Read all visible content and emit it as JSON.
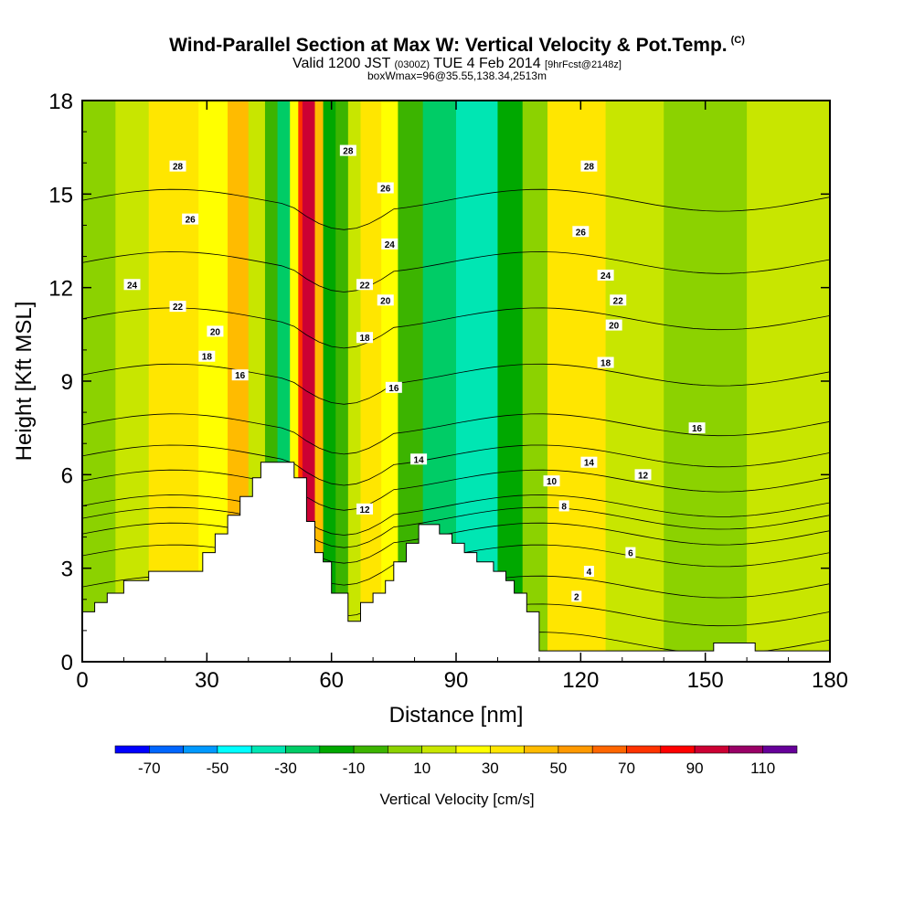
{
  "title": "Wind-Parallel Section at Max W: Vertical Velocity & Pot.Temp.",
  "title_mark": "(C)",
  "subtitle_main": "Valid 1200 JST",
  "subtitle_z": "(0300Z)",
  "subtitle_date": "TUE 4 Feb 2014",
  "subtitle_fcst": "[9hrFcst@2148z]",
  "subline": "boxWmax=96@35.55,138.34,2513m",
  "chart_data": {
    "type": "heatmap",
    "xlabel": "Distance [nm]",
    "ylabel": "Height [Kft MSL]",
    "xlim": [
      0,
      180
    ],
    "ylim": [
      0,
      18
    ],
    "xticks": [
      "0",
      "30",
      "60",
      "90",
      "120",
      "150",
      "180"
    ],
    "yticks": [
      "0",
      "3",
      "6",
      "9",
      "12",
      "15",
      "18"
    ],
    "colorbar": {
      "label": "Vertical Velocity [cm/s]",
      "tick_labels": [
        "-70",
        "-50",
        "-30",
        "-10",
        "10",
        "30",
        "50",
        "70",
        "90",
        "110"
      ],
      "levels": [
        -80,
        -70,
        -60,
        -50,
        -40,
        -30,
        -20,
        -10,
        0,
        10,
        20,
        30,
        40,
        50,
        60,
        70,
        80,
        90,
        100,
        110,
        120
      ],
      "colors": [
        "#0000ff",
        "#0066ff",
        "#0099ff",
        "#00ffff",
        "#00e6b3",
        "#00cc66",
        "#00a800",
        "#3cb400",
        "#8cd200",
        "#c8e600",
        "#ffff00",
        "#ffe600",
        "#ffbb00",
        "#ff9900",
        "#ff6600",
        "#ff3300",
        "#ff0000",
        "#cc0033",
        "#990066",
        "#660099"
      ]
    },
    "terrain": [
      [
        0,
        1.6
      ],
      [
        3,
        1.6
      ],
      [
        3,
        1.9
      ],
      [
        6,
        1.9
      ],
      [
        6,
        2.2
      ],
      [
        10,
        2.2
      ],
      [
        10,
        2.6
      ],
      [
        16,
        2.6
      ],
      [
        16,
        2.9
      ],
      [
        29,
        2.9
      ],
      [
        29,
        3.5
      ],
      [
        32,
        3.5
      ],
      [
        32,
        4.1
      ],
      [
        35,
        4.1
      ],
      [
        35,
        4.7
      ],
      [
        38,
        4.7
      ],
      [
        38,
        5.3
      ],
      [
        41,
        5.3
      ],
      [
        41,
        5.9
      ],
      [
        43,
        5.9
      ],
      [
        43,
        6.4
      ],
      [
        51,
        6.4
      ],
      [
        51,
        5.9
      ],
      [
        54,
        5.9
      ],
      [
        54,
        4.5
      ],
      [
        56,
        4.5
      ],
      [
        56,
        3.5
      ],
      [
        58,
        3.5
      ],
      [
        58,
        3.2
      ],
      [
        60,
        3.2
      ],
      [
        60,
        2.2
      ],
      [
        64,
        2.2
      ],
      [
        64,
        1.3
      ],
      [
        67,
        1.3
      ],
      [
        67,
        1.9
      ],
      [
        70,
        1.9
      ],
      [
        70,
        2.2
      ],
      [
        73,
        2.2
      ],
      [
        73,
        2.6
      ],
      [
        75,
        2.6
      ],
      [
        75,
        3.2
      ],
      [
        78,
        3.2
      ],
      [
        78,
        3.8
      ],
      [
        81,
        3.8
      ],
      [
        81,
        4.4
      ],
      [
        86,
        4.4
      ],
      [
        86,
        4.1
      ],
      [
        89,
        4.1
      ],
      [
        89,
        3.8
      ],
      [
        92,
        3.8
      ],
      [
        92,
        3.5
      ],
      [
        95,
        3.5
      ],
      [
        95,
        3.2
      ],
      [
        99,
        3.2
      ],
      [
        99,
        2.9
      ],
      [
        102,
        2.9
      ],
      [
        102,
        2.6
      ],
      [
        104,
        2.6
      ],
      [
        104,
        2.2
      ],
      [
        107,
        2.2
      ],
      [
        107,
        1.6
      ],
      [
        110,
        1.6
      ],
      [
        110,
        1.0
      ],
      [
        110,
        0.35
      ],
      [
        152,
        0.35
      ],
      [
        152,
        0.6
      ],
      [
        162,
        0.6
      ],
      [
        162,
        0.35
      ],
      [
        180,
        0.35
      ],
      [
        180,
        0
      ]
    ],
    "vertical_velocity_bands": [
      {
        "x0": 0,
        "x1": 8,
        "v": 0
      },
      {
        "x0": 8,
        "x1": 16,
        "v": 10
      },
      {
        "x0": 16,
        "x1": 28,
        "v": 30
      },
      {
        "x0": 28,
        "x1": 35,
        "v": 20
      },
      {
        "x0": 35,
        "x1": 40,
        "v": 40
      },
      {
        "x0": 40,
        "x1": 44,
        "v": 10
      },
      {
        "x0": 44,
        "x1": 47,
        "v": -10
      },
      {
        "x0": 47,
        "x1": 50,
        "v": -30
      },
      {
        "x0": 50,
        "x1": 52,
        "v": 20
      },
      {
        "x0": 52,
        "x1": 53,
        "v": 70
      },
      {
        "x0": 53,
        "x1": 56,
        "v": 96
      },
      {
        "x0": 56,
        "x1": 58,
        "v": 40
      },
      {
        "x0": 58,
        "x1": 61,
        "v": -20
      },
      {
        "x0": 61,
        "x1": 64,
        "v": -10
      },
      {
        "x0": 64,
        "x1": 67,
        "v": 10
      },
      {
        "x0": 67,
        "x1": 72,
        "v": 30
      },
      {
        "x0": 72,
        "x1": 76,
        "v": 20
      },
      {
        "x0": 76,
        "x1": 82,
        "v": -5
      },
      {
        "x0": 82,
        "x1": 90,
        "v": -30
      },
      {
        "x0": 90,
        "x1": 100,
        "v": -40
      },
      {
        "x0": 100,
        "x1": 106,
        "v": -20
      },
      {
        "x0": 106,
        "x1": 112,
        "v": 0
      },
      {
        "x0": 112,
        "x1": 126,
        "v": 30
      },
      {
        "x0": 126,
        "x1": 140,
        "v": 10
      },
      {
        "x0": 140,
        "x1": 160,
        "v": 0
      },
      {
        "x0": 160,
        "x1": 180,
        "v": 10
      }
    ],
    "potential_temperature_contours": [
      {
        "label": "2",
        "h": 0.6,
        "lx": 119,
        "ly": 2.1
      },
      {
        "label": "4",
        "h": 1.5,
        "lx": 122,
        "ly": 2.9
      },
      {
        "label": "6",
        "h": 2.4,
        "lx": 132,
        "ly": 3.5
      },
      {
        "label": "8",
        "h": 3.4,
        "lx": 116,
        "ly": 5.0
      },
      {
        "label": "10",
        "h": 4.1,
        "lx": 113,
        "ly": 5.8
      },
      {
        "label": "12",
        "h": 4.6,
        "lx": 135,
        "ly": 6.0
      },
      {
        "label": "12",
        "h": 4.6,
        "lx": 68,
        "ly": 4.9
      },
      {
        "label": "14",
        "h": 5.0,
        "lx": 122,
        "ly": 6.4
      },
      {
        "label": "14",
        "h": 5.0,
        "lx": 81,
        "ly": 6.5
      },
      {
        "label": "16",
        "h": 5.8,
        "lx": 148,
        "ly": 7.5
      },
      {
        "label": "16",
        "h": 5.8,
        "lx": 38,
        "ly": 9.2
      },
      {
        "label": "16",
        "h": 5.8,
        "lx": 75,
        "ly": 8.8
      },
      {
        "label": "18",
        "h": 6.6,
        "lx": 126,
        "ly": 9.6
      },
      {
        "label": "18",
        "h": 6.6,
        "lx": 30,
        "ly": 9.8
      },
      {
        "label": "18",
        "h": 6.6,
        "lx": 68,
        "ly": 10.4
      },
      {
        "label": "20",
        "h": 7.6,
        "lx": 128,
        "ly": 10.8
      },
      {
        "label": "20",
        "h": 7.6,
        "lx": 32,
        "ly": 10.6
      },
      {
        "label": "20",
        "h": 7.6,
        "lx": 73,
        "ly": 11.6
      },
      {
        "label": "22",
        "h": 9.2,
        "lx": 129,
        "ly": 11.6
      },
      {
        "label": "22",
        "h": 9.2,
        "lx": 23,
        "ly": 11.4
      },
      {
        "label": "22",
        "h": 9.2,
        "lx": 68,
        "ly": 12.1
      },
      {
        "label": "24",
        "h": 11.0,
        "lx": 126,
        "ly": 12.4
      },
      {
        "label": "24",
        "h": 11.0,
        "lx": 12,
        "ly": 12.1
      },
      {
        "label": "24",
        "h": 11.0,
        "lx": 74,
        "ly": 13.4
      },
      {
        "label": "26",
        "h": 12.8,
        "lx": 120,
        "ly": 13.8
      },
      {
        "label": "26",
        "h": 12.8,
        "lx": 26,
        "ly": 14.2
      },
      {
        "label": "26",
        "h": 12.8,
        "lx": 73,
        "ly": 15.2
      },
      {
        "label": "28",
        "h": 14.8,
        "lx": 122,
        "ly": 15.9
      },
      {
        "label": "28",
        "h": 14.8,
        "lx": 23,
        "ly": 15.9
      },
      {
        "label": "28",
        "h": 14.8,
        "lx": 64,
        "ly": 16.4
      }
    ]
  }
}
